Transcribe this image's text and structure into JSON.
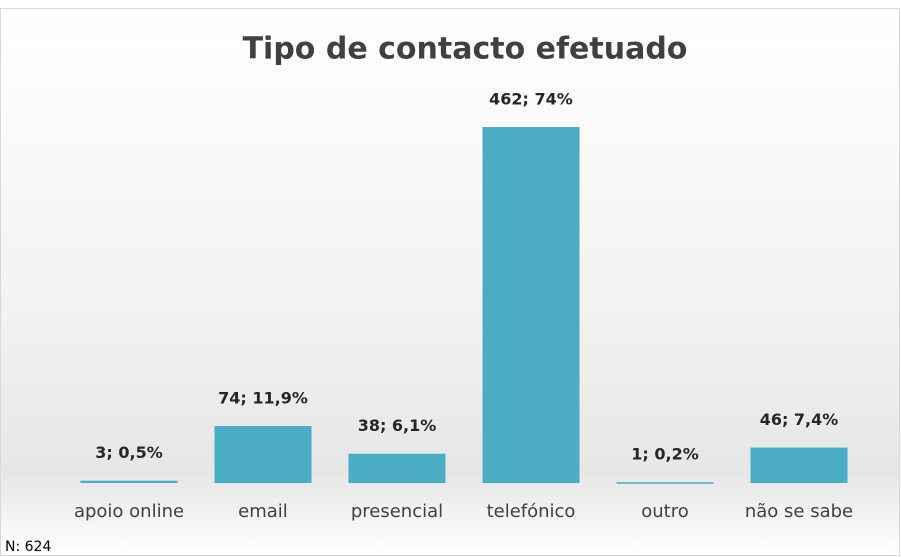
{
  "chart_data": {
    "type": "bar",
    "title": "Tipo de contacto efetuado",
    "categories": [
      "apoio online",
      "email",
      "presencial",
      "telefónico",
      "outro",
      "não se sabe"
    ],
    "values": [
      3,
      74,
      38,
      462,
      1,
      46
    ],
    "value_labels": [
      "3; 0,5%",
      "74; 11,9%",
      "38; 6,1%",
      "462; 74%",
      "1; 0,2%",
      "46; 7,4%"
    ],
    "color": "#4bacc6",
    "annotation": "N: 624"
  }
}
